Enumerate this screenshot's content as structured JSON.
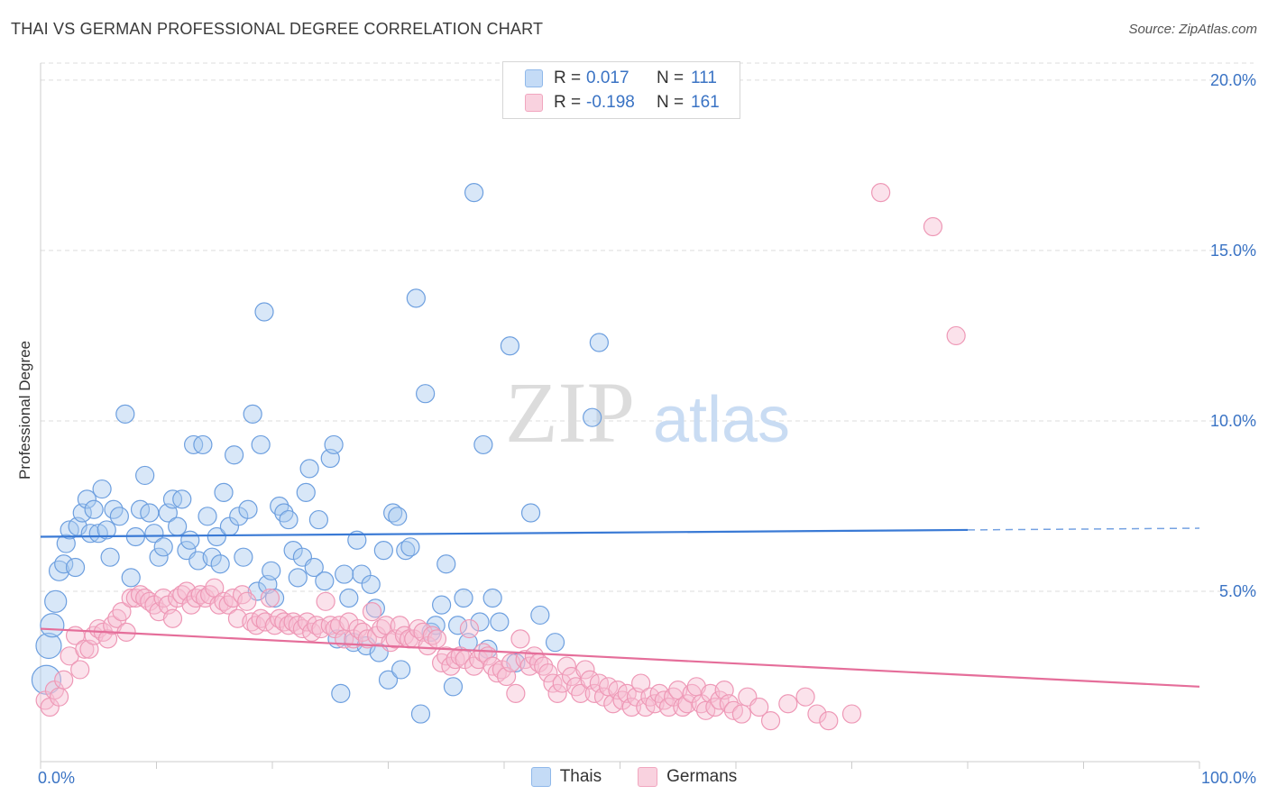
{
  "title": "THAI VS GERMAN PROFESSIONAL DEGREE CORRELATION CHART",
  "source": "Source: ZipAtlas.com",
  "watermark": {
    "zip": "ZIP",
    "atlas": "atlas"
  },
  "legend": [
    {
      "r_label": "R =",
      "r_value": "0.017",
      "n_label": "N =",
      "n_value": "111",
      "color": "#8fb8ea",
      "fill": "#c4dbf6"
    },
    {
      "r_label": "R =",
      "r_value": "-0.198",
      "n_label": "N =",
      "n_value": "161",
      "color": "#f1a6bf",
      "fill": "#f9d2df"
    }
  ],
  "bottom_legend": [
    "Thais",
    "Germans"
  ],
  "chart_data": {
    "type": "scatter",
    "xlabel": "",
    "ylabel": "Professional Degree",
    "xlim": [
      0,
      100
    ],
    "ylim": [
      0,
      20.5
    ],
    "x_tick_labels": [
      "0.0%",
      "100.0%"
    ],
    "y_ticks": [
      5,
      10,
      15,
      20
    ],
    "y_tick_labels": [
      "5.0%",
      "10.0%",
      "15.0%",
      "20.0%"
    ],
    "grid": true,
    "series": [
      {
        "name": "Thais",
        "color": "#3a7ad5",
        "fill": "#a9c9f0",
        "r": 0.017,
        "n": 111,
        "trend": {
          "x0": 0,
          "y0": 6.6,
          "x1": 80,
          "y1": 6.8,
          "dash_to_x": 100,
          "dash_to_y": 6.85
        },
        "points": [
          [
            0.5,
            2.4
          ],
          [
            0.7,
            3.4
          ],
          [
            1.0,
            4.0
          ],
          [
            1.3,
            4.7
          ],
          [
            1.6,
            5.6
          ],
          [
            2.0,
            5.8
          ],
          [
            2.2,
            6.4
          ],
          [
            2.5,
            6.8
          ],
          [
            3.0,
            5.7
          ],
          [
            3.2,
            6.9
          ],
          [
            3.6,
            7.3
          ],
          [
            4.0,
            7.7
          ],
          [
            4.3,
            6.7
          ],
          [
            4.6,
            7.4
          ],
          [
            5.0,
            6.7
          ],
          [
            5.3,
            8.0
          ],
          [
            5.7,
            6.8
          ],
          [
            6.0,
            6.0
          ],
          [
            6.3,
            7.4
          ],
          [
            6.8,
            7.2
          ],
          [
            7.3,
            10.2
          ],
          [
            7.8,
            5.4
          ],
          [
            8.2,
            6.6
          ],
          [
            8.6,
            7.4
          ],
          [
            9.0,
            8.4
          ],
          [
            9.4,
            7.3
          ],
          [
            9.8,
            6.7
          ],
          [
            10.2,
            6.0
          ],
          [
            10.6,
            6.3
          ],
          [
            11.0,
            7.3
          ],
          [
            11.4,
            7.7
          ],
          [
            11.8,
            6.9
          ],
          [
            12.2,
            7.7
          ],
          [
            12.6,
            6.2
          ],
          [
            12.9,
            6.5
          ],
          [
            13.2,
            9.3
          ],
          [
            13.6,
            5.9
          ],
          [
            14.0,
            9.3
          ],
          [
            14.4,
            7.2
          ],
          [
            14.8,
            6.0
          ],
          [
            15.2,
            6.6
          ],
          [
            15.5,
            5.8
          ],
          [
            15.8,
            7.9
          ],
          [
            16.3,
            6.9
          ],
          [
            16.7,
            9.0
          ],
          [
            17.1,
            7.2
          ],
          [
            17.5,
            6.0
          ],
          [
            17.9,
            7.4
          ],
          [
            18.3,
            10.2
          ],
          [
            18.7,
            5.0
          ],
          [
            19.0,
            9.3
          ],
          [
            19.3,
            13.2
          ],
          [
            19.6,
            5.2
          ],
          [
            19.9,
            5.6
          ],
          [
            20.2,
            4.8
          ],
          [
            20.6,
            7.5
          ],
          [
            21.0,
            7.3
          ],
          [
            21.4,
            7.1
          ],
          [
            21.8,
            6.2
          ],
          [
            22.2,
            5.4
          ],
          [
            22.6,
            6.0
          ],
          [
            22.9,
            7.9
          ],
          [
            23.2,
            8.6
          ],
          [
            23.6,
            5.7
          ],
          [
            24.0,
            7.1
          ],
          [
            24.5,
            5.3
          ],
          [
            25.0,
            8.9
          ],
          [
            25.3,
            9.3
          ],
          [
            25.6,
            3.6
          ],
          [
            25.9,
            2.0
          ],
          [
            26.2,
            5.5
          ],
          [
            26.6,
            4.8
          ],
          [
            27.0,
            3.5
          ],
          [
            27.3,
            6.5
          ],
          [
            27.7,
            5.5
          ],
          [
            28.1,
            3.4
          ],
          [
            28.5,
            5.2
          ],
          [
            28.9,
            4.5
          ],
          [
            29.2,
            3.2
          ],
          [
            29.6,
            6.2
          ],
          [
            30.0,
            2.4
          ],
          [
            30.4,
            7.3
          ],
          [
            30.8,
            7.2
          ],
          [
            31.1,
            2.7
          ],
          [
            31.5,
            6.2
          ],
          [
            31.9,
            6.3
          ],
          [
            32.4,
            13.6
          ],
          [
            32.8,
            1.4
          ],
          [
            33.2,
            10.8
          ],
          [
            33.7,
            3.8
          ],
          [
            34.1,
            4.0
          ],
          [
            34.6,
            4.6
          ],
          [
            35.0,
            5.8
          ],
          [
            35.6,
            2.2
          ],
          [
            36.0,
            4.0
          ],
          [
            36.5,
            4.8
          ],
          [
            36.9,
            3.5
          ],
          [
            37.4,
            16.7
          ],
          [
            37.9,
            4.1
          ],
          [
            38.2,
            9.3
          ],
          [
            38.6,
            3.3
          ],
          [
            39.0,
            4.8
          ],
          [
            39.6,
            4.1
          ],
          [
            40.5,
            12.2
          ],
          [
            41.0,
            2.9
          ],
          [
            42.3,
            7.3
          ],
          [
            43.1,
            4.3
          ],
          [
            44.4,
            3.5
          ],
          [
            47.6,
            10.1
          ],
          [
            48.2,
            12.3
          ]
        ]
      },
      {
        "name": "Germans",
        "color": "#e56e9a",
        "fill": "#f6bfd2",
        "r": -0.198,
        "n": 161,
        "trend": {
          "x0": 0,
          "y0": 3.9,
          "x1": 100,
          "y1": 2.2
        },
        "points": [
          [
            0.4,
            1.8
          ],
          [
            0.8,
            1.6
          ],
          [
            1.2,
            2.1
          ],
          [
            1.6,
            1.9
          ],
          [
            2.0,
            2.4
          ],
          [
            2.5,
            3.1
          ],
          [
            3.0,
            3.7
          ],
          [
            3.4,
            2.7
          ],
          [
            3.8,
            3.3
          ],
          [
            4.2,
            3.3
          ],
          [
            4.6,
            3.7
          ],
          [
            5.0,
            3.9
          ],
          [
            5.4,
            3.8
          ],
          [
            5.8,
            3.6
          ],
          [
            6.2,
            4.0
          ],
          [
            6.6,
            4.2
          ],
          [
            7.0,
            4.4
          ],
          [
            7.4,
            3.8
          ],
          [
            7.8,
            4.8
          ],
          [
            8.2,
            4.8
          ],
          [
            8.6,
            4.9
          ],
          [
            9.0,
            4.8
          ],
          [
            9.4,
            4.7
          ],
          [
            9.8,
            4.6
          ],
          [
            10.2,
            4.4
          ],
          [
            10.6,
            4.8
          ],
          [
            11.0,
            4.6
          ],
          [
            11.4,
            4.2
          ],
          [
            11.8,
            4.8
          ],
          [
            12.2,
            4.9
          ],
          [
            12.6,
            5.0
          ],
          [
            13.0,
            4.6
          ],
          [
            13.4,
            4.8
          ],
          [
            13.8,
            4.9
          ],
          [
            14.2,
            4.8
          ],
          [
            14.6,
            4.9
          ],
          [
            15.0,
            5.1
          ],
          [
            15.4,
            4.6
          ],
          [
            15.8,
            4.7
          ],
          [
            16.2,
            4.6
          ],
          [
            16.6,
            4.8
          ],
          [
            17.0,
            4.2
          ],
          [
            17.4,
            4.9
          ],
          [
            17.8,
            4.7
          ],
          [
            18.2,
            4.1
          ],
          [
            18.6,
            4.0
          ],
          [
            19.0,
            4.2
          ],
          [
            19.4,
            4.1
          ],
          [
            19.8,
            4.8
          ],
          [
            20.2,
            4.0
          ],
          [
            20.6,
            4.2
          ],
          [
            21.0,
            4.1
          ],
          [
            21.4,
            4.0
          ],
          [
            21.8,
            4.1
          ],
          [
            22.2,
            4.0
          ],
          [
            22.6,
            3.9
          ],
          [
            23.0,
            4.1
          ],
          [
            23.4,
            3.8
          ],
          [
            23.8,
            4.0
          ],
          [
            24.2,
            3.9
          ],
          [
            24.6,
            4.7
          ],
          [
            25.0,
            4.0
          ],
          [
            25.4,
            3.9
          ],
          [
            25.8,
            4.0
          ],
          [
            26.2,
            3.6
          ],
          [
            26.6,
            4.1
          ],
          [
            27.0,
            3.6
          ],
          [
            27.4,
            3.9
          ],
          [
            27.8,
            3.8
          ],
          [
            28.2,
            3.6
          ],
          [
            28.6,
            4.4
          ],
          [
            29.0,
            3.7
          ],
          [
            29.4,
            3.9
          ],
          [
            29.8,
            4.0
          ],
          [
            30.2,
            3.5
          ],
          [
            30.6,
            3.6
          ],
          [
            31.0,
            4.0
          ],
          [
            31.4,
            3.7
          ],
          [
            31.8,
            3.6
          ],
          [
            32.2,
            3.6
          ],
          [
            32.6,
            3.9
          ],
          [
            33.0,
            3.8
          ],
          [
            33.4,
            3.4
          ],
          [
            33.8,
            3.7
          ],
          [
            34.2,
            3.6
          ],
          [
            34.6,
            2.9
          ],
          [
            35.0,
            3.1
          ],
          [
            35.4,
            2.8
          ],
          [
            35.8,
            3.0
          ],
          [
            36.2,
            3.1
          ],
          [
            36.6,
            3.0
          ],
          [
            37.0,
            3.9
          ],
          [
            37.4,
            2.8
          ],
          [
            37.8,
            3.0
          ],
          [
            38.2,
            3.2
          ],
          [
            38.6,
            3.1
          ],
          [
            39.0,
            2.8
          ],
          [
            39.4,
            2.6
          ],
          [
            39.8,
            2.7
          ],
          [
            40.2,
            2.5
          ],
          [
            40.6,
            2.9
          ],
          [
            41.0,
            2.0
          ],
          [
            41.4,
            3.6
          ],
          [
            41.8,
            3.0
          ],
          [
            42.2,
            2.8
          ],
          [
            42.6,
            3.1
          ],
          [
            43.0,
            2.9
          ],
          [
            43.4,
            2.8
          ],
          [
            43.8,
            2.6
          ],
          [
            44.2,
            2.3
          ],
          [
            44.6,
            2.0
          ],
          [
            45.0,
            2.3
          ],
          [
            45.4,
            2.8
          ],
          [
            45.8,
            2.5
          ],
          [
            46.2,
            2.2
          ],
          [
            46.6,
            2.0
          ],
          [
            47.0,
            2.7
          ],
          [
            47.4,
            2.4
          ],
          [
            47.8,
            2.0
          ],
          [
            48.2,
            2.3
          ],
          [
            48.6,
            1.9
          ],
          [
            49.0,
            2.2
          ],
          [
            49.4,
            1.7
          ],
          [
            49.8,
            2.1
          ],
          [
            50.2,
            1.8
          ],
          [
            50.6,
            2.0
          ],
          [
            51.0,
            1.6
          ],
          [
            51.4,
            1.9
          ],
          [
            51.8,
            2.3
          ],
          [
            52.2,
            1.6
          ],
          [
            52.6,
            1.9
          ],
          [
            53.0,
            1.7
          ],
          [
            53.4,
            2.0
          ],
          [
            53.8,
            1.8
          ],
          [
            54.2,
            1.6
          ],
          [
            54.6,
            1.9
          ],
          [
            55.0,
            2.1
          ],
          [
            55.4,
            1.6
          ],
          [
            55.8,
            1.7
          ],
          [
            56.2,
            2.0
          ],
          [
            56.6,
            2.2
          ],
          [
            57.0,
            1.7
          ],
          [
            57.4,
            1.5
          ],
          [
            57.8,
            2.0
          ],
          [
            58.2,
            1.6
          ],
          [
            58.6,
            1.8
          ],
          [
            59.0,
            2.1
          ],
          [
            59.4,
            1.7
          ],
          [
            59.8,
            1.5
          ],
          [
            60.5,
            1.4
          ],
          [
            61.0,
            1.9
          ],
          [
            62.0,
            1.6
          ],
          [
            63.0,
            1.2
          ],
          [
            64.5,
            1.7
          ],
          [
            66.0,
            1.9
          ],
          [
            67.0,
            1.4
          ],
          [
            68.0,
            1.2
          ],
          [
            70.0,
            1.4
          ],
          [
            72.5,
            16.7
          ],
          [
            77.0,
            15.7
          ],
          [
            79.0,
            12.5
          ]
        ]
      }
    ]
  }
}
